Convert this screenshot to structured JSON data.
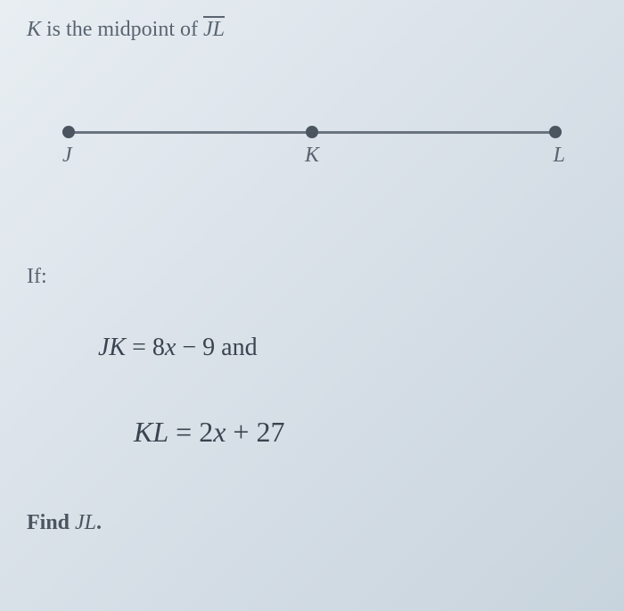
{
  "header": {
    "prefix": "K",
    "text": " is the midpoint of ",
    "segment": "JL"
  },
  "diagram": {
    "points": {
      "j": "J",
      "k": "K",
      "l": "L"
    },
    "line_color": "#6a7480",
    "point_color": "#4a5560"
  },
  "if_label": "If:",
  "equation1": {
    "lhs": "JK",
    "eq": " = ",
    "rhs_coeff": "8",
    "rhs_var": "x",
    "rhs_op": " − 9",
    "suffix": " and"
  },
  "equation2": {
    "lhs": "KL",
    "eq": " = ",
    "rhs_coeff": "2",
    "rhs_var": "x",
    "rhs_op": " + 27"
  },
  "find": {
    "prefix": "Find ",
    "segment": "JL",
    "suffix": "."
  },
  "styling": {
    "background_gradient": [
      "#e8eef2",
      "#d8e0e8",
      "#c8d4dd"
    ],
    "text_color": "#4a5560",
    "header_fontsize": 24,
    "equation_fontsize": 28,
    "equation2_fontsize": 32,
    "label_fontsize": 24
  }
}
